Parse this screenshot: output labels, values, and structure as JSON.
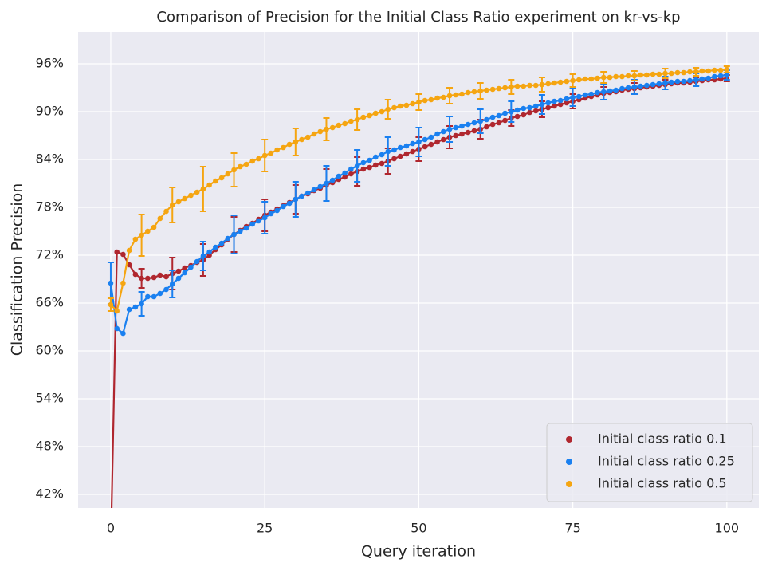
{
  "chart_data": {
    "type": "line",
    "title": "Comparison of Precision for the Initial Class Ratio experiment on kr-vs-kp",
    "x_label": "Query iteration",
    "y_label": "Classification Precision",
    "x": [
      0,
      1,
      2,
      3,
      4,
      5,
      6,
      7,
      8,
      9,
      10,
      11,
      12,
      13,
      14,
      15,
      16,
      17,
      18,
      19,
      20,
      21,
      22,
      23,
      24,
      25,
      26,
      27,
      28,
      29,
      30,
      31,
      32,
      33,
      34,
      35,
      36,
      37,
      38,
      39,
      40,
      41,
      42,
      43,
      44,
      45,
      46,
      47,
      48,
      49,
      50,
      51,
      52,
      53,
      54,
      55,
      56,
      57,
      58,
      59,
      60,
      61,
      62,
      63,
      64,
      65,
      66,
      67,
      68,
      69,
      70,
      71,
      72,
      73,
      74,
      75,
      76,
      77,
      78,
      79,
      80,
      81,
      82,
      83,
      84,
      85,
      86,
      87,
      88,
      89,
      90,
      91,
      92,
      93,
      94,
      95,
      96,
      97,
      98,
      99,
      100
    ],
    "error_x": [
      0,
      5,
      10,
      15,
      20,
      25,
      30,
      35,
      40,
      45,
      50,
      55,
      60,
      65,
      70,
      75,
      80,
      85,
      90,
      95,
      100
    ],
    "series": [
      {
        "name": "Initial class ratio 0.1",
        "color": "#b0272f",
        "values": [
          35,
          72.4,
          72.1,
          70.8,
          69.6,
          69.1,
          69.1,
          69.2,
          69.5,
          69.3,
          69.7,
          70.0,
          70.4,
          70.7,
          71.1,
          71.4,
          72.0,
          72.7,
          73.3,
          74.0,
          74.6,
          75.1,
          75.6,
          76.0,
          76.5,
          77.0,
          77.4,
          77.8,
          78.2,
          78.6,
          79.0,
          79.4,
          79.7,
          80.1,
          80.4,
          80.8,
          81.1,
          81.5,
          81.8,
          82.2,
          82.5,
          82.8,
          83.0,
          83.3,
          83.5,
          83.8,
          84.1,
          84.4,
          84.7,
          85.0,
          85.3,
          85.6,
          85.9,
          86.2,
          86.5,
          86.8,
          87.0,
          87.2,
          87.4,
          87.6,
          87.8,
          88.1,
          88.4,
          88.6,
          88.9,
          89.2,
          89.4,
          89.6,
          89.9,
          90.1,
          90.3,
          90.5,
          90.7,
          90.9,
          91.1,
          91.3,
          91.5,
          91.7,
          91.9,
          92.1,
          92.3,
          92.4,
          92.5,
          92.7,
          92.8,
          92.9,
          93.0,
          93.1,
          93.2,
          93.3,
          93.4,
          93.5,
          93.6,
          93.6,
          93.7,
          93.8,
          93.9,
          94.0,
          94.0,
          94.1,
          94.2
        ],
        "errors": [
          null,
          1.2,
          2.0,
          2.0,
          2.2,
          2.0,
          1.8,
          2.0,
          1.8,
          1.6,
          1.5,
          1.4,
          1.2,
          1.0,
          1.0,
          0.9,
          0.8,
          0.7,
          0.6,
          0.5,
          0.4
        ]
      },
      {
        "name": "Initial class ratio 0.25",
        "color": "#1a80f0",
        "values": [
          68.5,
          62.8,
          62.2,
          65.2,
          65.5,
          65.9,
          66.8,
          66.8,
          67.2,
          67.7,
          68.4,
          69.1,
          69.8,
          70.5,
          71.2,
          71.9,
          72.4,
          73.0,
          73.5,
          74.1,
          74.6,
          75.0,
          75.4,
          75.9,
          76.3,
          76.7,
          77.2,
          77.6,
          78.1,
          78.5,
          79.0,
          79.4,
          79.8,
          80.2,
          80.6,
          81.0,
          81.4,
          81.9,
          82.3,
          82.8,
          83.2,
          83.6,
          83.9,
          84.3,
          84.6,
          85.0,
          85.2,
          85.5,
          85.7,
          86.0,
          86.2,
          86.5,
          86.8,
          87.2,
          87.5,
          87.8,
          88.0,
          88.2,
          88.4,
          88.6,
          88.8,
          89.0,
          89.3,
          89.5,
          89.8,
          90.0,
          90.2,
          90.4,
          90.5,
          90.7,
          90.9,
          91.1,
          91.3,
          91.4,
          91.6,
          91.8,
          91.9,
          92.1,
          92.2,
          92.4,
          92.5,
          92.6,
          92.7,
          92.9,
          93.0,
          93.1,
          93.2,
          93.3,
          93.4,
          93.5,
          93.6,
          93.7,
          93.8,
          93.8,
          93.9,
          94.0,
          94.1,
          94.2,
          94.4,
          94.5,
          94.6
        ],
        "errors": [
          2.6,
          1.5,
          1.7,
          1.8,
          2.4,
          2.0,
          2.2,
          2.2,
          2.0,
          1.8,
          1.8,
          1.6,
          1.5,
          1.3,
          1.2,
          1.1,
          1.0,
          0.9,
          0.8,
          0.8,
          0.6
        ]
      },
      {
        "name": "Initial class ratio 0.5",
        "color": "#f5a511",
        "values": [
          65.8,
          65.0,
          68.5,
          72.6,
          74.0,
          74.5,
          75.0,
          75.5,
          76.6,
          77.5,
          78.3,
          78.7,
          79.1,
          79.5,
          79.9,
          80.3,
          80.8,
          81.3,
          81.7,
          82.2,
          82.7,
          83.1,
          83.4,
          83.8,
          84.1,
          84.5,
          84.8,
          85.2,
          85.5,
          85.9,
          86.2,
          86.5,
          86.8,
          87.2,
          87.5,
          87.8,
          88.0,
          88.3,
          88.5,
          88.8,
          89.0,
          89.3,
          89.5,
          89.8,
          90.0,
          90.3,
          90.5,
          90.7,
          90.8,
          91.0,
          91.2,
          91.4,
          91.5,
          91.7,
          91.8,
          92.0,
          92.1,
          92.2,
          92.4,
          92.5,
          92.6,
          92.7,
          92.8,
          92.9,
          93.0,
          93.1,
          93.2,
          93.2,
          93.3,
          93.3,
          93.4,
          93.5,
          93.6,
          93.7,
          93.8,
          93.9,
          94.0,
          94.1,
          94.1,
          94.2,
          94.3,
          94.3,
          94.4,
          94.4,
          94.5,
          94.5,
          94.6,
          94.6,
          94.7,
          94.7,
          94.8,
          94.8,
          94.9,
          94.9,
          95.0,
          95.0,
          95.1,
          95.1,
          95.2,
          95.2,
          95.3
        ],
        "errors": [
          0.8,
          2.6,
          2.2,
          2.8,
          2.1,
          2.0,
          1.7,
          1.4,
          1.3,
          1.2,
          1.0,
          1.0,
          1.0,
          0.9,
          0.9,
          0.8,
          0.7,
          0.6,
          0.6,
          0.5,
          0.4
        ]
      }
    ],
    "xlim": [
      -5.3,
      105.2
    ],
    "xticks": [
      0,
      25,
      50,
      75,
      100
    ],
    "ylim": [
      40.3,
      100
    ],
    "yticks": [
      {
        "value": 42,
        "label": "42%"
      },
      {
        "value": 48,
        "label": "48%"
      },
      {
        "value": 54,
        "label": "54%"
      },
      {
        "value": 60,
        "label": "60%"
      },
      {
        "value": 66,
        "label": "66%"
      },
      {
        "value": 72,
        "label": "72%"
      },
      {
        "value": 78,
        "label": "78%"
      },
      {
        "value": 84,
        "label": "84%"
      },
      {
        "value": 90,
        "label": "90%"
      },
      {
        "value": 96,
        "label": "96%"
      }
    ],
    "grid": true,
    "legend": "lower right",
    "background": "#eaeaf2"
  }
}
